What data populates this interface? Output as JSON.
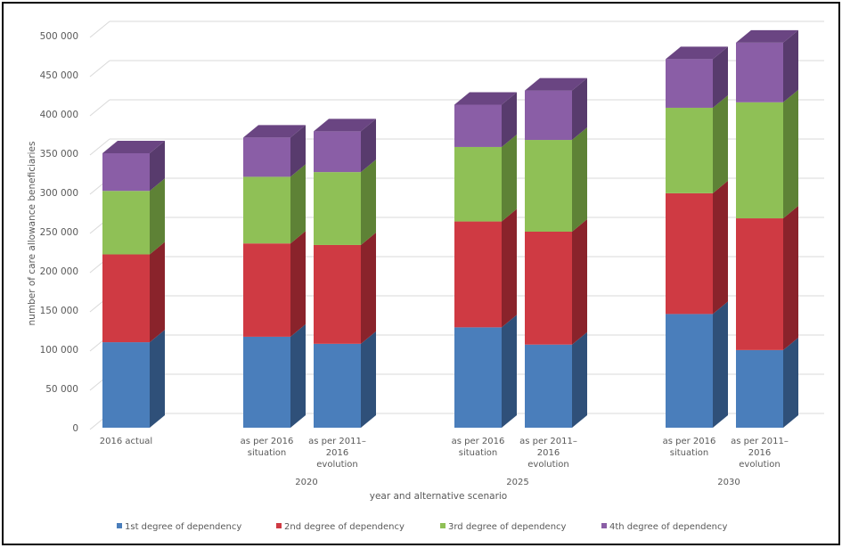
{
  "chart_data": {
    "type": "bar",
    "stacked": true,
    "three_d": true,
    "title": "",
    "xlabel": "year and alternative scenario",
    "ylabel": "number of care allowance beneficiaries",
    "ylim": [
      0,
      500000
    ],
    "yticks": [
      0,
      50000,
      100000,
      150000,
      200000,
      250000,
      300000,
      350000,
      400000,
      450000,
      500000
    ],
    "ytick_labels": [
      "0",
      "50 000",
      "100 000",
      "150 000",
      "200 000",
      "250 000",
      "300 000",
      "350 000",
      "400 000",
      "450 000",
      "500 000"
    ],
    "grid": true,
    "legend_position": "bottom",
    "categories": [
      {
        "label_lines": [
          "2016 actual"
        ],
        "group": ""
      },
      {
        "label_lines": [
          "as per 2016",
          "situation"
        ],
        "group": "2020"
      },
      {
        "label_lines": [
          "as per 2011–",
          "2016",
          "evolution"
        ],
        "group": "2020"
      },
      {
        "label_lines": [
          "as per 2016",
          "situation"
        ],
        "group": "2025"
      },
      {
        "label_lines": [
          "as per 2011–",
          "2016",
          "evolution"
        ],
        "group": "2025"
      },
      {
        "label_lines": [
          "as per 2016",
          "situation"
        ],
        "group": "2030"
      },
      {
        "label_lines": [
          "as per 2011–",
          "2016",
          "evolution"
        ],
        "group": "2030"
      }
    ],
    "groups": [
      "2020",
      "2025",
      "2030"
    ],
    "series": [
      {
        "name": "1st degree of dependency",
        "color": "#4a7ebb",
        "side": "#2f5079",
        "top": "#3d6aa0",
        "values": [
          109000,
          116000,
          107000,
          128000,
          106000,
          145000,
          99000
        ]
      },
      {
        "name": "2nd degree of dependency",
        "color": "#cf3a43",
        "side": "#8a232b",
        "top": "#b02f37",
        "values": [
          112000,
          119000,
          126000,
          135000,
          144000,
          154000,
          168000
        ]
      },
      {
        "name": "3rd degree of dependency",
        "color": "#8fc056",
        "side": "#5e8236",
        "top": "#7aa84a",
        "values": [
          81000,
          85000,
          93000,
          95000,
          117000,
          109000,
          148000
        ]
      },
      {
        "name": "4th degree of dependency",
        "color": "#8a5ea6",
        "side": "#583b6d",
        "top": "#6a4582",
        "values": [
          48000,
          50000,
          52000,
          54000,
          63000,
          62000,
          76000
        ]
      }
    ]
  }
}
